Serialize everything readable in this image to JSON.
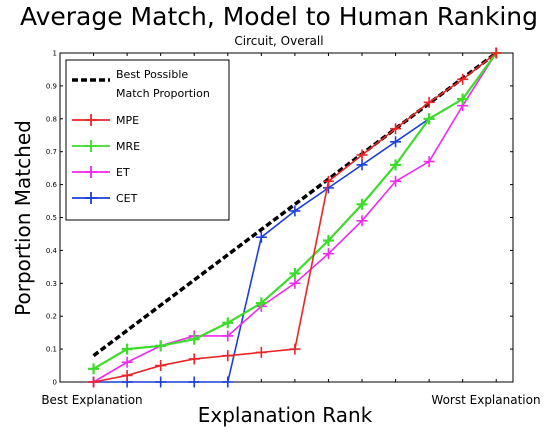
{
  "chart_data": {
    "type": "line",
    "title": "Average Match, Model to Human Ranking",
    "subtitle": "Circuit, Overall",
    "xlabel": "Explanation Rank",
    "ylabel": "Porportion Matched",
    "x_tick_labels": [
      "Best Explanation",
      "Worst Explanation"
    ],
    "x": [
      1,
      2,
      3,
      4,
      5,
      6,
      7,
      8,
      9,
      10,
      11,
      12,
      13
    ],
    "xlim": [
      0,
      13.5
    ],
    "ylim": [
      0,
      1
    ],
    "y_ticks": [
      0,
      0.1,
      0.2,
      0.3,
      0.4,
      0.5,
      0.6,
      0.7,
      0.8,
      0.9,
      1
    ],
    "y_tick_labels": [
      "0",
      "0.1",
      "0.2",
      "0.3",
      "0.4",
      "0.5",
      "0.6",
      "0.7",
      "0.8",
      "0.9",
      "1"
    ],
    "grid": false,
    "legend_position": "top-left",
    "series": [
      {
        "name": "Best Possible Match Proportion",
        "name_lines": [
          "Best Possible",
          "Match Proportion"
        ],
        "color": "#000000",
        "style": "dashed",
        "marker": "none",
        "x": [
          1,
          13
        ],
        "values": [
          0.08,
          1.0
        ]
      },
      {
        "name": "MPE",
        "color": "#e8262a",
        "style": "solid",
        "marker": "plus",
        "values": [
          0.0,
          0.02,
          0.05,
          0.07,
          0.08,
          0.09,
          0.1,
          0.61,
          0.69,
          0.77,
          0.85,
          0.92,
          1.0
        ]
      },
      {
        "name": "MRE",
        "color": "#3ddc2a",
        "style": "solid",
        "marker": "plus",
        "values": [
          0.04,
          0.1,
          0.11,
          0.13,
          0.18,
          0.24,
          0.33,
          0.43,
          0.54,
          0.66,
          0.8,
          0.86,
          1.0
        ]
      },
      {
        "name": "ET",
        "color": "#ee2aee",
        "style": "solid",
        "marker": "plus",
        "values": [
          0.0,
          0.06,
          0.11,
          0.14,
          0.14,
          0.23,
          0.3,
          0.39,
          0.49,
          0.61,
          0.67,
          0.84,
          1.0
        ]
      },
      {
        "name": "CET",
        "color": "#1d3fd8",
        "style": "solid",
        "marker": "plus",
        "values": [
          0.0,
          0.0,
          0.0,
          0.0,
          0.0,
          0.44,
          0.52,
          0.59,
          0.66,
          0.73,
          0.8,
          0.86,
          1.0
        ]
      }
    ]
  }
}
